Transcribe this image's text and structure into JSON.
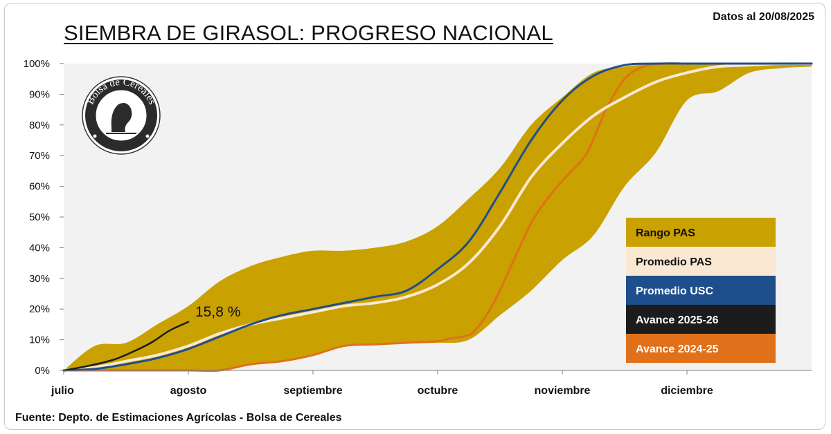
{
  "header": {
    "title": "SIEMBRA DE GIRASOL: PROGRESO NACIONAL",
    "date_note": "Datos al 20/08/2025"
  },
  "footer": {
    "source": "Fuente: Depto. de Estimaciones Agrícolas - Bolsa de Cereales"
  },
  "logo": {
    "text": "Bolsa de Cereales"
  },
  "chart_data": {
    "type": "area",
    "title": "SIEMBRA DE GIRASOL: PROGRESO NACIONAL",
    "xlabel": "",
    "ylabel": "",
    "x_domain": [
      0,
      6
    ],
    "ylim": [
      0,
      100
    ],
    "y_ticks": [
      "0%",
      "10%",
      "20%",
      "30%",
      "40%",
      "50%",
      "60%",
      "70%",
      "80%",
      "90%",
      "100%"
    ],
    "x_ticks": [
      {
        "x": 0,
        "label": "julio"
      },
      {
        "x": 1,
        "label": "agosto"
      },
      {
        "x": 2,
        "label": "septiembre"
      },
      {
        "x": 3,
        "label": "octubre"
      },
      {
        "x": 4,
        "label": "noviembre"
      },
      {
        "x": 5,
        "label": "diciembre"
      }
    ],
    "grid": false,
    "legend_position": "right",
    "annotation": {
      "text": "15,8 %",
      "x": 1.0,
      "y": 15.8
    },
    "series": [
      {
        "name": "Rango PAS",
        "kind": "band",
        "color": "#c9a100",
        "x": [
          0,
          0.25,
          0.5,
          0.75,
          1.0,
          1.25,
          1.5,
          1.75,
          2.0,
          2.25,
          2.5,
          2.75,
          3.0,
          3.25,
          3.5,
          3.75,
          4.0,
          4.25,
          4.5,
          4.75,
          5.0,
          5.25,
          5.5,
          5.75,
          6.0
        ],
        "upper": [
          0,
          8,
          9,
          15,
          21,
          29,
          34,
          37,
          39,
          39,
          40,
          42,
          47,
          56,
          66,
          80,
          89,
          97,
          99,
          100,
          100,
          100,
          100,
          100,
          100
        ],
        "lower": [
          0,
          0,
          0,
          0,
          0,
          0,
          2,
          3,
          5,
          8,
          8.5,
          9,
          9,
          10,
          18,
          26,
          36,
          44,
          60,
          71,
          88,
          91,
          97,
          98.5,
          99
        ]
      },
      {
        "name": "Promedio PAS",
        "color": "#fbe8d2",
        "x": [
          0,
          0.25,
          0.5,
          0.75,
          1.0,
          1.25,
          1.5,
          1.75,
          2.0,
          2.25,
          2.5,
          2.75,
          3.0,
          3.25,
          3.5,
          3.75,
          4.0,
          4.25,
          4.5,
          4.75,
          5.0,
          5.25,
          5.5,
          5.75,
          6.0
        ],
        "values": [
          0,
          1,
          3,
          5,
          8,
          12,
          15,
          17,
          19,
          21,
          22,
          24,
          28,
          35,
          47,
          63,
          74,
          83,
          89,
          94,
          97,
          99,
          99.5,
          100,
          100
        ]
      },
      {
        "name": "Promedio USC",
        "color": "#1f4e8c",
        "x": [
          0,
          0.25,
          0.5,
          0.75,
          1.0,
          1.25,
          1.5,
          1.75,
          2.0,
          2.25,
          2.5,
          2.75,
          3.0,
          3.25,
          3.5,
          3.75,
          4.0,
          4.25,
          4.5,
          4.75,
          5.0,
          5.25,
          5.5,
          5.75,
          6.0
        ],
        "values": [
          0,
          0.5,
          2,
          4,
          7,
          11,
          15,
          18,
          20,
          22,
          24,
          26,
          33,
          42,
          58,
          75,
          88,
          96,
          99.5,
          100,
          100,
          100,
          100,
          100,
          100
        ]
      },
      {
        "name": "Avance 2025-26",
        "color": "#1c1c1c",
        "x": [
          0,
          0.2,
          0.4,
          0.55,
          0.7,
          0.85,
          1.0
        ],
        "values": [
          0,
          1.5,
          3.5,
          6,
          9,
          13,
          15.8
        ]
      },
      {
        "name": "Avance 2024-25",
        "color": "#e07019",
        "x": [
          0,
          0.5,
          1.0,
          1.25,
          1.5,
          1.75,
          2.0,
          2.25,
          2.5,
          2.75,
          3.0,
          3.1,
          3.2,
          3.3,
          3.45,
          3.6,
          3.75,
          3.9,
          4.05,
          4.2,
          4.35,
          4.5,
          4.65,
          4.8,
          5.0,
          5.25,
          5.5,
          6.0
        ],
        "values": [
          0,
          0,
          0,
          0,
          2,
          3,
          5,
          8,
          8.5,
          9,
          9.5,
          10.5,
          11,
          13,
          22,
          35,
          48,
          57,
          64,
          71,
          85,
          95,
          99,
          100,
          100,
          100,
          100,
          100
        ]
      }
    ]
  }
}
